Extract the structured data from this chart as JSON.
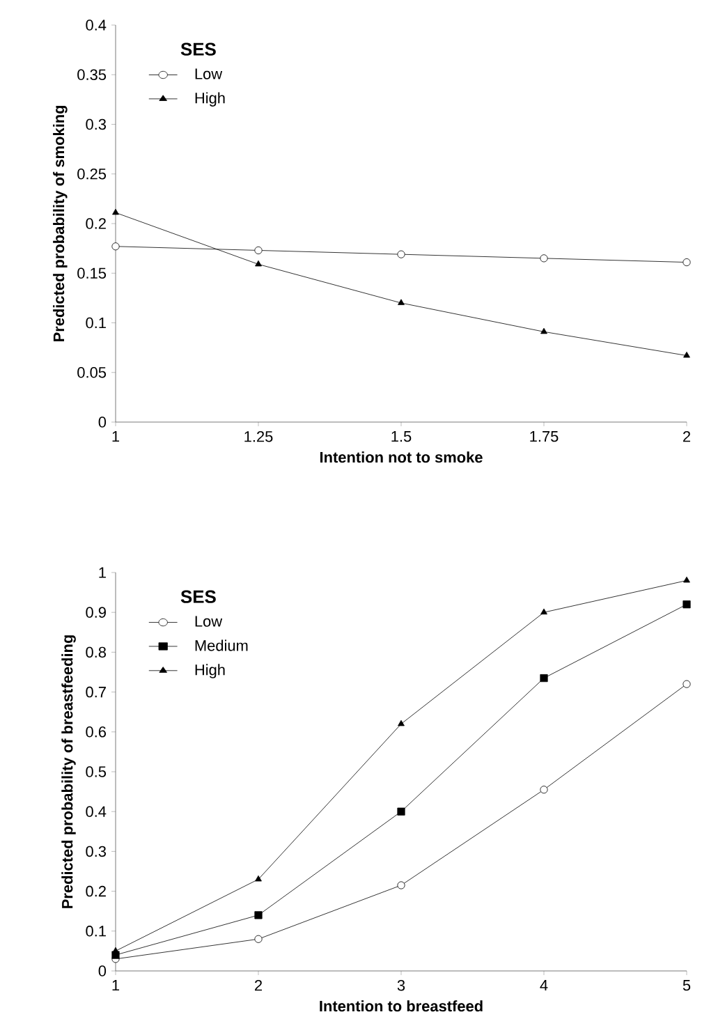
{
  "chart_data": [
    {
      "type": "line",
      "xlabel": "Intention not to smoke",
      "ylabel": "Predicted probability of smoking",
      "legend_title": "SES",
      "legend": "top left",
      "x": [
        1,
        1.25,
        1.5,
        1.75,
        2
      ],
      "xlim": [
        1,
        2
      ],
      "xticks": [
        1,
        1.25,
        1.5,
        1.75,
        2
      ],
      "ylim": [
        0,
        0.4
      ],
      "yticks": [
        0,
        0.05,
        0.1,
        0.15,
        0.2,
        0.25,
        0.3,
        0.35,
        0.4
      ],
      "grid": false,
      "series": [
        {
          "name": "Low",
          "color": "#000000",
          "marker": "circle",
          "values": [
            0.177,
            0.173,
            0.169,
            0.165,
            0.161
          ]
        },
        {
          "name": "High",
          "color": "#000000",
          "marker": "triangle",
          "values": [
            0.211,
            0.159,
            0.12,
            0.091,
            0.067
          ]
        }
      ]
    },
    {
      "type": "line",
      "xlabel": "Intention to breastfeed",
      "ylabel": "Predicted probability of breastfeeding",
      "legend_title": "SES",
      "legend": "top left",
      "x": [
        1,
        2,
        3,
        4,
        5
      ],
      "xlim": [
        1,
        5
      ],
      "xticks": [
        1,
        2,
        3,
        4,
        5
      ],
      "ylim": [
        0,
        1
      ],
      "yticks": [
        0,
        0.1,
        0.2,
        0.3,
        0.4,
        0.5,
        0.6,
        0.7,
        0.8,
        0.9,
        1
      ],
      "grid": false,
      "series": [
        {
          "name": "Low",
          "color": "#000000",
          "marker": "circle",
          "values": [
            0.03,
            0.08,
            0.215,
            0.455,
            0.72
          ]
        },
        {
          "name": "Medium",
          "color": "#000000",
          "marker": "square",
          "values": [
            0.04,
            0.14,
            0.4,
            0.735,
            0.92
          ]
        },
        {
          "name": "High",
          "color": "#000000",
          "marker": "triangle",
          "values": [
            0.05,
            0.23,
            0.62,
            0.9,
            0.98
          ]
        }
      ]
    }
  ]
}
